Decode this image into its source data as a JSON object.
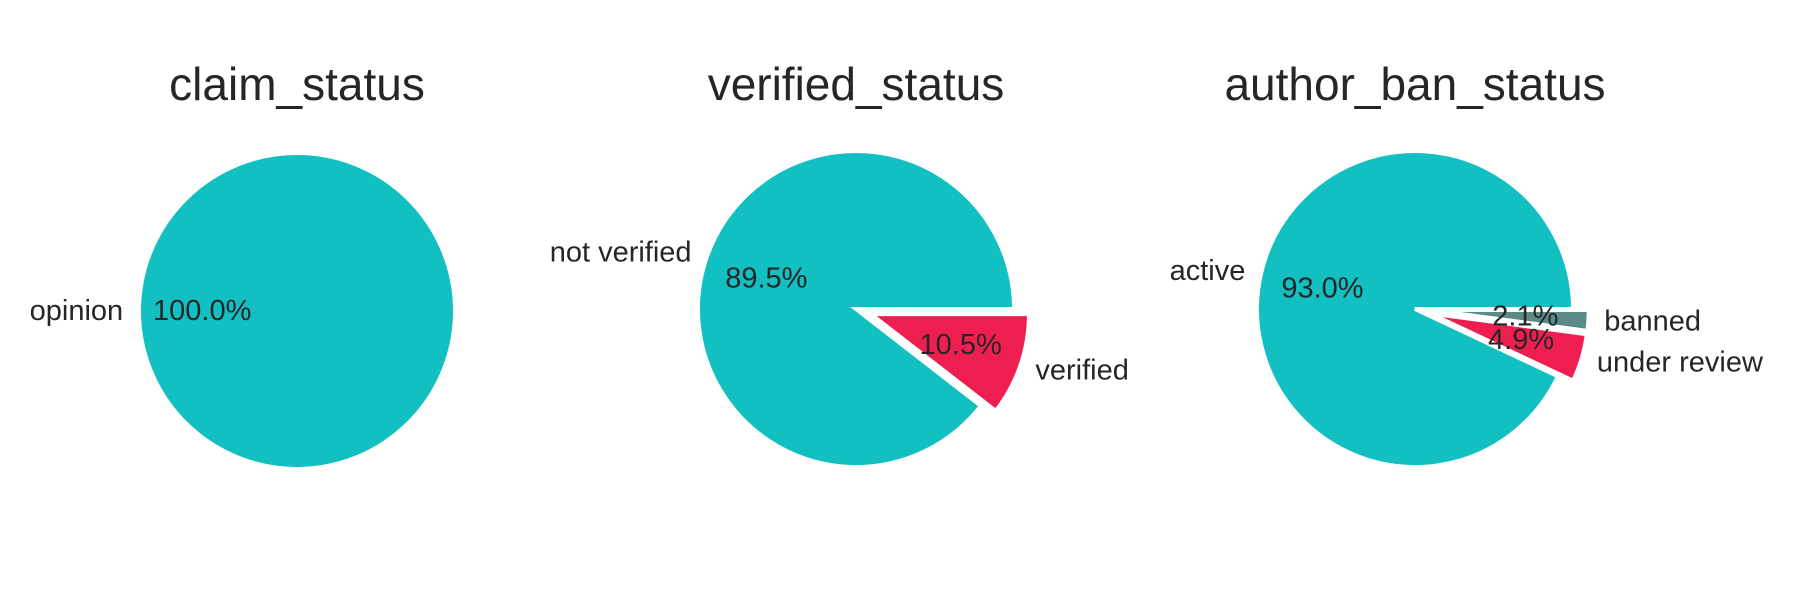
{
  "colors": {
    "teal": "#12BFC1",
    "crimson": "#EE1E50",
    "slate": "#5B8A88",
    "text": "#262626",
    "edge": "#ffffff"
  },
  "chart_data": [
    {
      "type": "pie",
      "title": "claim_status",
      "slices": [
        {
          "label": "opinion",
          "value": 100.0,
          "pct_text": "100.0%",
          "color": "#12BFC1",
          "exploded": false
        }
      ]
    },
    {
      "type": "pie",
      "title": "verified_status",
      "slices": [
        {
          "label": "not verified",
          "value": 89.5,
          "pct_text": "89.5%",
          "color": "#12BFC1",
          "exploded": false
        },
        {
          "label": "verified",
          "value": 10.5,
          "pct_text": "10.5%",
          "color": "#EE1E50",
          "exploded": true
        }
      ]
    },
    {
      "type": "pie",
      "title": "author_ban_status",
      "slices": [
        {
          "label": "active",
          "value": 93.0,
          "pct_text": "93.0%",
          "color": "#12BFC1",
          "exploded": false
        },
        {
          "label": "under review",
          "value": 4.9,
          "pct_text": "4.9%",
          "color": "#EE1E50",
          "exploded": true
        },
        {
          "label": "banned",
          "value": 2.1,
          "pct_text": "2.1%",
          "color": "#5B8A88",
          "exploded": true
        }
      ]
    }
  ]
}
